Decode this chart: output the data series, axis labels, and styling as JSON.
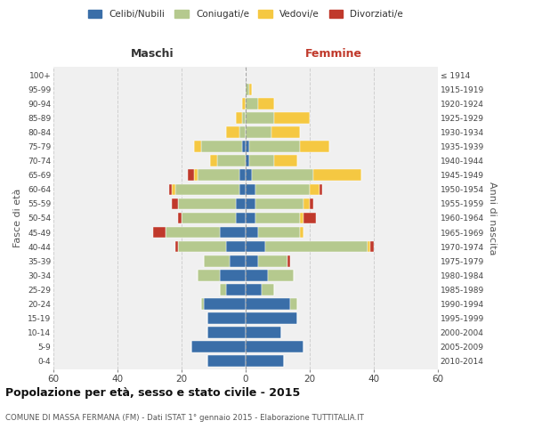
{
  "age_groups": [
    "0-4",
    "5-9",
    "10-14",
    "15-19",
    "20-24",
    "25-29",
    "30-34",
    "35-39",
    "40-44",
    "45-49",
    "50-54",
    "55-59",
    "60-64",
    "65-69",
    "70-74",
    "75-79",
    "80-84",
    "85-89",
    "90-94",
    "95-99",
    "100+"
  ],
  "birth_years": [
    "2010-2014",
    "2005-2009",
    "2000-2004",
    "1995-1999",
    "1990-1994",
    "1985-1989",
    "1980-1984",
    "1975-1979",
    "1970-1974",
    "1965-1969",
    "1960-1964",
    "1955-1959",
    "1950-1954",
    "1945-1949",
    "1940-1944",
    "1935-1939",
    "1930-1934",
    "1925-1929",
    "1920-1924",
    "1915-1919",
    "≤ 1914"
  ],
  "colors": {
    "celibi": "#3a6ea8",
    "coniugati": "#b5c98e",
    "vedovi": "#f5c842",
    "divorziati": "#c0392b"
  },
  "males": {
    "celibi": [
      12,
      17,
      12,
      12,
      13,
      6,
      8,
      5,
      6,
      8,
      3,
      3,
      2,
      2,
      0,
      1,
      0,
      0,
      0,
      0,
      0
    ],
    "coniugati": [
      0,
      0,
      0,
      0,
      1,
      2,
      7,
      8,
      15,
      17,
      17,
      18,
      20,
      13,
      9,
      13,
      2,
      1,
      0,
      0,
      0
    ],
    "vedovi": [
      0,
      0,
      0,
      0,
      0,
      0,
      0,
      0,
      0,
      0,
      0,
      0,
      1,
      1,
      2,
      2,
      4,
      2,
      1,
      0,
      0
    ],
    "divorziati": [
      0,
      0,
      0,
      0,
      0,
      0,
      0,
      0,
      1,
      4,
      1,
      2,
      1,
      2,
      0,
      0,
      0,
      0,
      0,
      0,
      0
    ]
  },
  "females": {
    "celibi": [
      12,
      18,
      11,
      16,
      14,
      5,
      7,
      4,
      6,
      4,
      3,
      3,
      3,
      2,
      1,
      1,
      0,
      0,
      0,
      0,
      0
    ],
    "coniugati": [
      0,
      0,
      0,
      0,
      2,
      4,
      8,
      9,
      32,
      13,
      14,
      15,
      17,
      19,
      8,
      16,
      8,
      9,
      4,
      1,
      0
    ],
    "vedovi": [
      0,
      0,
      0,
      0,
      0,
      0,
      0,
      0,
      1,
      1,
      1,
      2,
      3,
      15,
      7,
      9,
      9,
      11,
      5,
      1,
      0
    ],
    "divorziati": [
      0,
      0,
      0,
      0,
      0,
      0,
      0,
      1,
      1,
      0,
      4,
      1,
      1,
      0,
      0,
      0,
      0,
      0,
      0,
      0,
      0
    ]
  },
  "xlim": 60,
  "title": "Popolazione per età, sesso e stato civile - 2015",
  "subtitle": "COMUNE DI MASSA FERMANA (FM) - Dati ISTAT 1° gennaio 2015 - Elaborazione TUTTITALIA.IT",
  "xlabel_left": "Maschi",
  "xlabel_right": "Femmine",
  "ylabel": "Fasce di età",
  "ylabel_right": "Anni di nascita",
  "legend_labels": [
    "Celibi/Nubili",
    "Coniugati/e",
    "Vedovi/e",
    "Divorziati/e"
  ],
  "bg_color": "#f0f0f0",
  "grid_color": "#cccccc"
}
